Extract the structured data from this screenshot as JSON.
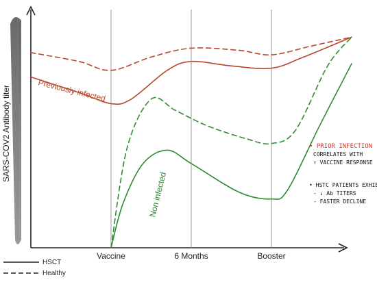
{
  "chart_data": {
    "type": "line",
    "title": "",
    "xlabel": "",
    "ylabel": "SARS-COV2 Antibody titer",
    "categories": [
      "Vaccine",
      "6 Months",
      "Booster"
    ],
    "x_range": [
      0,
      4
    ],
    "y_range": [
      0,
      100
    ],
    "grid": false,
    "legend_position": "bottom-left",
    "legend": [
      {
        "label": "HSCT",
        "style": "solid"
      },
      {
        "label": "Healthy",
        "style": "dashed"
      }
    ],
    "series": [
      {
        "name": "Previously infected",
        "group": "HSCT",
        "color": "#b5472c",
        "dash": false,
        "points": [
          [
            0,
            77
          ],
          [
            0.6,
            70
          ],
          [
            1.0,
            65
          ],
          [
            1.25,
            67
          ],
          [
            1.7,
            80
          ],
          [
            2.0,
            84
          ],
          [
            2.5,
            82
          ],
          [
            3.0,
            81
          ],
          [
            3.4,
            86
          ],
          [
            4.0,
            95
          ]
        ]
      },
      {
        "name": "",
        "group": "Healthy",
        "color": "#b5472c",
        "dash": true,
        "points": [
          [
            0,
            88
          ],
          [
            0.6,
            84
          ],
          [
            1.0,
            80
          ],
          [
            1.5,
            86
          ],
          [
            2.0,
            90
          ],
          [
            2.6,
            89
          ],
          [
            3.0,
            87
          ],
          [
            3.5,
            91
          ],
          [
            4.0,
            95
          ]
        ]
      },
      {
        "name": "Non infected",
        "group": "HSCT",
        "color": "#2e8b2e",
        "dash": false,
        "points": [
          [
            1.0,
            0
          ],
          [
            1.15,
            20
          ],
          [
            1.4,
            38
          ],
          [
            1.7,
            44
          ],
          [
            2.0,
            38
          ],
          [
            2.6,
            25
          ],
          [
            3.0,
            22
          ],
          [
            3.2,
            26
          ],
          [
            3.6,
            55
          ],
          [
            4.0,
            83
          ]
        ]
      },
      {
        "name": "",
        "group": "Healthy",
        "color": "#2e8b2e",
        "dash": true,
        "points": [
          [
            1.0,
            0
          ],
          [
            1.2,
            45
          ],
          [
            1.5,
            67
          ],
          [
            1.8,
            62
          ],
          [
            2.2,
            55
          ],
          [
            2.7,
            49
          ],
          [
            3.0,
            47
          ],
          [
            3.3,
            53
          ],
          [
            3.7,
            82
          ],
          [
            4.0,
            95
          ]
        ]
      }
    ],
    "annotations": [
      {
        "text": "• PRIOR INFECTION",
        "color": "#d23a2a"
      },
      {
        "text": "CORRELATES WITH"
      },
      {
        "text": "↑ VACCINE RESPONSE"
      },
      {
        "text": "• HSTC PATIENTS EXHIBIT"
      },
      {
        "text": "- ↓ Ab TITERS"
      },
      {
        "text": "- FASTER DECLINE"
      }
    ]
  }
}
